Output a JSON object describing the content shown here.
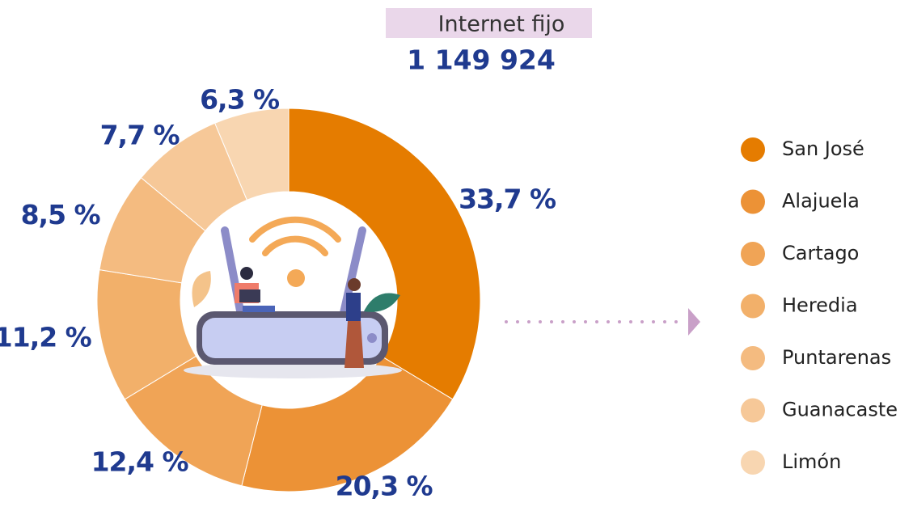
{
  "chart_data": {
    "type": "pie",
    "donut": true,
    "title": "Internet fijo",
    "subtitle": "1 149 924",
    "categories": [
      "San José",
      "Alajuela",
      "Cartago",
      "Heredia",
      "Puntarenas",
      "Guanacaste",
      "Limón"
    ],
    "values": [
      33.7,
      20.3,
      12.4,
      11.2,
      8.5,
      7.7,
      6.3
    ],
    "value_labels": [
      "33,7 %",
      "20,3 %",
      "12,4 %",
      "11,2 %",
      "8,5 %",
      "7,7 %",
      "6,3 %"
    ],
    "colors": [
      "#e57c00",
      "#ec9236",
      "#f0a456",
      "#f2b06a",
      "#f4bb80",
      "#f6c898",
      "#f8d6b1"
    ],
    "legend": "right"
  }
}
